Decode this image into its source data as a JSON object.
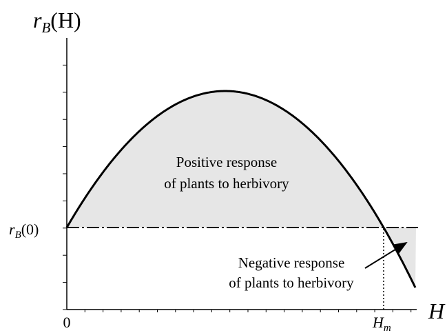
{
  "y_axis_label": {
    "base": "r",
    "sub": "B",
    "rest": "(H)"
  },
  "x_axis_label": "H",
  "origin_label": "0",
  "baseline_label": {
    "base": "r",
    "sub": "B",
    "rest": "(0)"
  },
  "threshold_label": {
    "base": "H",
    "sub": "m"
  },
  "positive_region": [
    "Positive response",
    "of plants to herbivory"
  ],
  "negative_region": [
    "Negative response",
    "of plants to herbivory"
  ]
}
